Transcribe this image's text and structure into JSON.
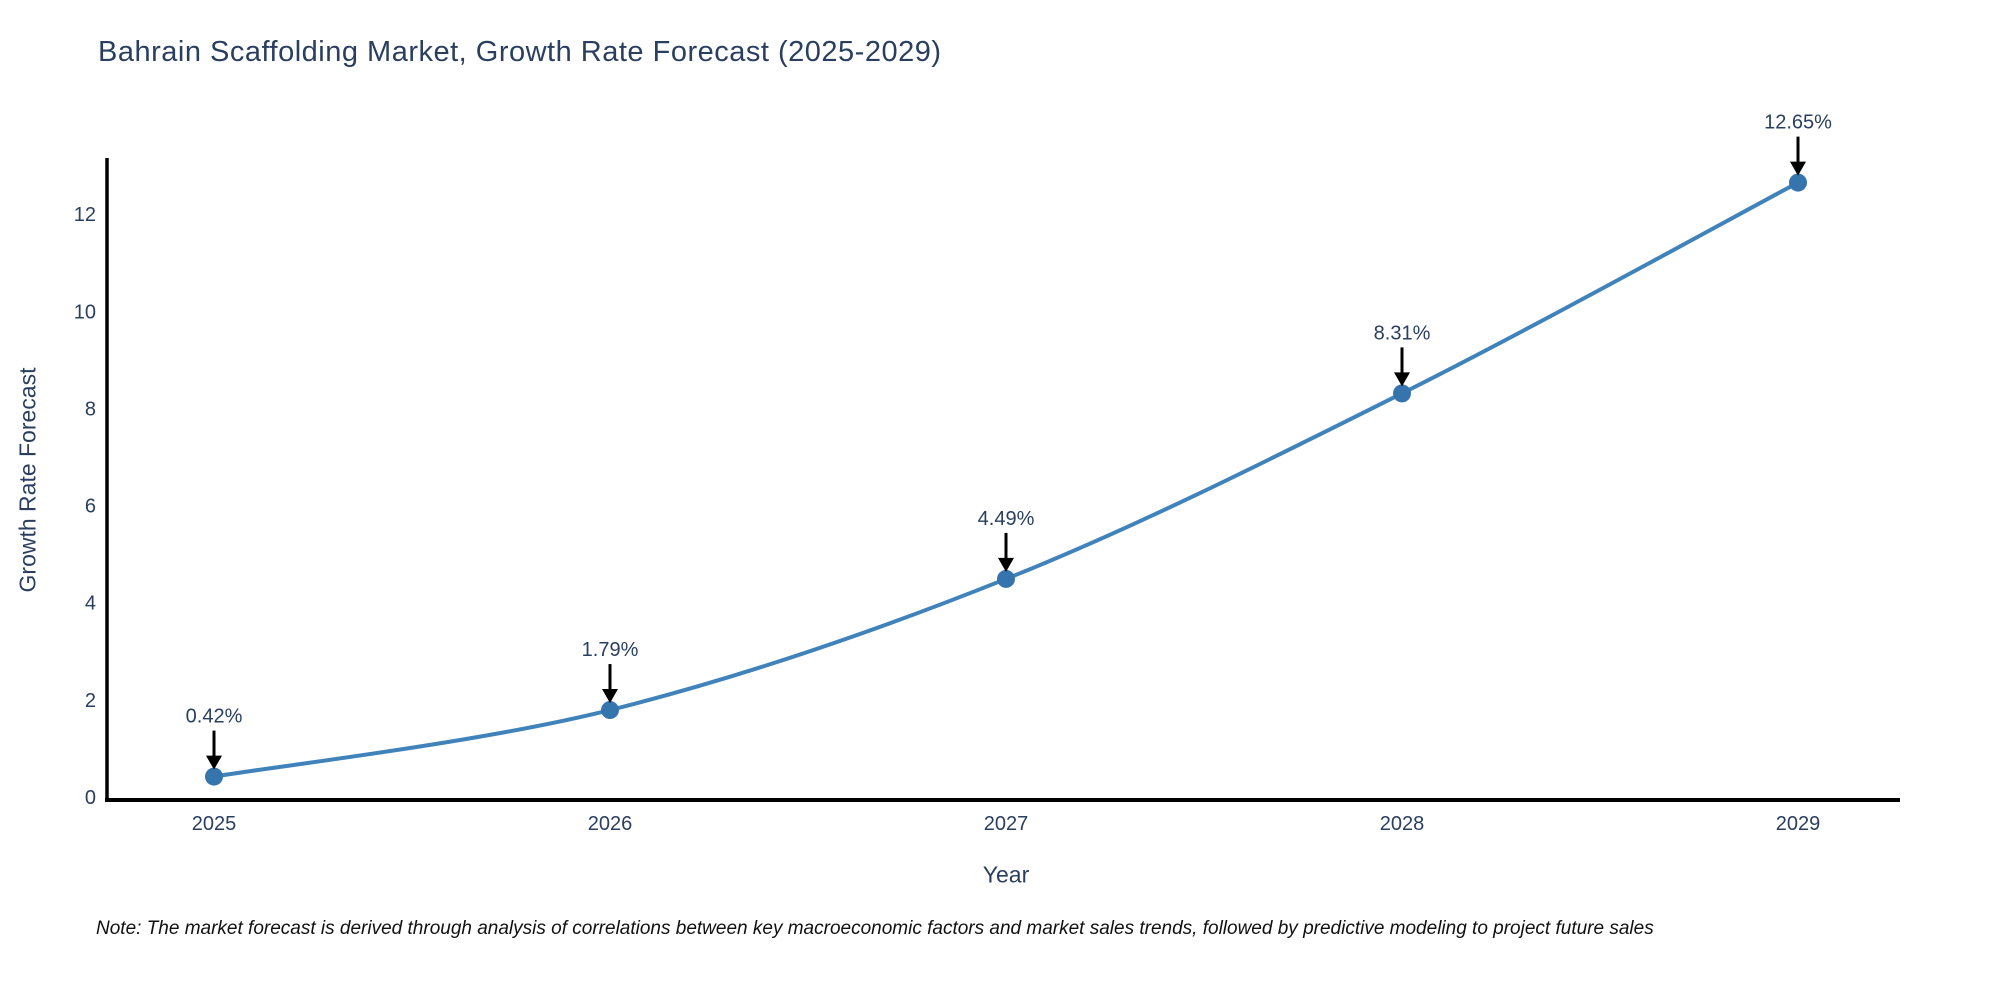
{
  "title": "Bahrain Scaffolding Market, Growth Rate Forecast (2025-2029)",
  "note": "Note: The market forecast is derived through analysis of correlations between key macroeconomic factors and market sales trends, followed by predictive modeling to project future sales",
  "chart_data": {
    "type": "line",
    "title": "Bahrain Scaffolding Market, Growth Rate Forecast (2025-2029)",
    "xlabel": "Year",
    "ylabel": "Growth Rate Forecast",
    "categories": [
      "2025",
      "2026",
      "2027",
      "2028",
      "2029"
    ],
    "series": [
      {
        "name": "Growth Rate Forecast",
        "values": [
          0.42,
          1.79,
          4.49,
          8.31,
          12.65
        ],
        "data_labels": [
          "0.42%",
          "1.79%",
          "4.49%",
          "8.31%",
          "12.65%"
        ]
      }
    ],
    "yticks": [
      0,
      2,
      4,
      6,
      8,
      10,
      12
    ],
    "ylim": [
      0,
      13.1
    ],
    "grid": false,
    "legend_position": "none",
    "marker": "circle",
    "line_shape": "spline",
    "annotation_arrows": true,
    "colors": {
      "line": "#4083bb",
      "marker": "#3674ad",
      "axis": "#000000",
      "arrow": "#000000",
      "text": "#2a3f5f",
      "note_text": "#111111",
      "background": "#ffffff"
    }
  }
}
